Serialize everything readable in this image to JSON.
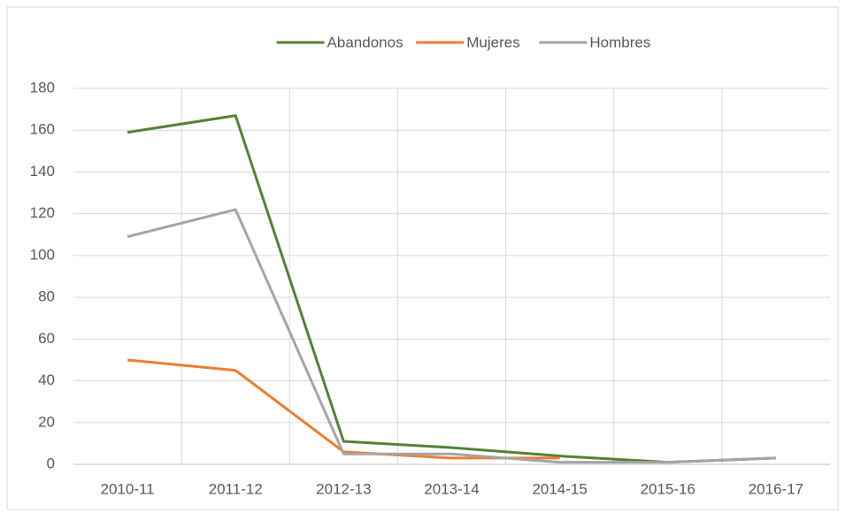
{
  "chart_data": {
    "type": "line",
    "categories": [
      "2010-11",
      "2011-12",
      "2012-13",
      "2013-14",
      "2014-15",
      "2015-16",
      "2016-17"
    ],
    "series": [
      {
        "name": "Abandonos",
        "color": "#548235",
        "values": [
          159,
          167,
          11,
          8,
          4,
          1,
          3
        ]
      },
      {
        "name": "Mujeres",
        "color": "#ed7d31",
        "values": [
          50,
          45,
          6,
          3,
          3,
          null,
          null
        ]
      },
      {
        "name": "Hombres",
        "color": "#a5a5a5",
        "values": [
          109,
          122,
          5,
          5,
          1,
          1,
          3
        ]
      }
    ],
    "ylim": [
      0,
      180
    ],
    "yticks": [
      0,
      20,
      40,
      60,
      80,
      100,
      120,
      140,
      160,
      180
    ],
    "grid": true,
    "legend": "top"
  }
}
